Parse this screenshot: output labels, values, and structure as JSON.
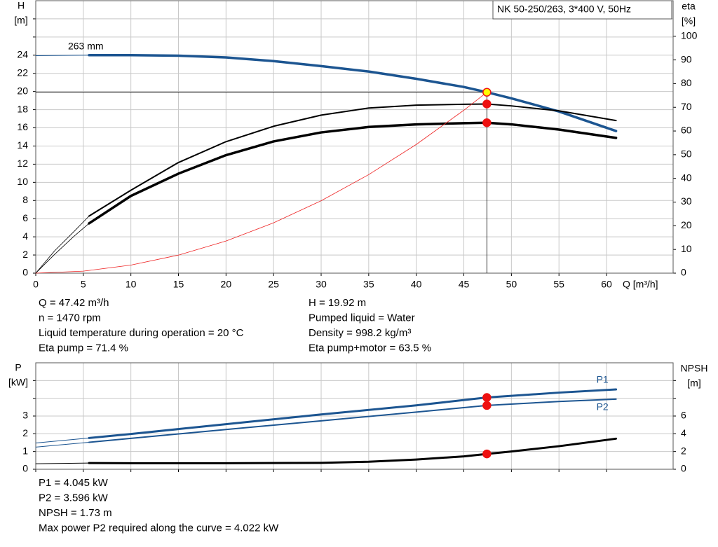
{
  "chart_data": [
    {
      "type": "line",
      "title": "NK 50-250/263, 3*400 V, 50Hz",
      "xlabel": "Q [m³/h]",
      "ylabel": [
        "H",
        "[m]"
      ],
      "y2label": [
        "eta",
        "[%]"
      ],
      "xlim": [
        0,
        67
      ],
      "xticks": [
        0,
        5,
        10,
        15,
        20,
        25,
        30,
        35,
        40,
        45,
        50,
        55,
        60
      ],
      "ylim": [
        0,
        30
      ],
      "yticks": [
        0,
        2,
        4,
        6,
        8,
        10,
        12,
        14,
        16,
        18,
        20,
        22,
        24
      ],
      "ygrid_extra": [
        26,
        28
      ],
      "y2lim": [
        0,
        115
      ],
      "y2ticks": [
        0,
        10,
        20,
        30,
        40,
        50,
        60,
        70,
        80,
        90,
        100
      ],
      "grid": true,
      "series": [
        {
          "x": [
            0,
            5.6
          ],
          "values": [
            23.95,
            24
          ],
          "color": "#1c5591",
          "width": 1,
          "axis": "y"
        },
        {
          "name": "263 mm",
          "x": [
            5.6,
            10,
            15,
            20,
            25,
            30,
            35,
            40,
            45,
            47.42,
            50,
            55,
            61
          ],
          "values": [
            24,
            24,
            23.95,
            23.75,
            23.35,
            22.8,
            22.2,
            21.4,
            20.5,
            19.92,
            19.25,
            17.8,
            15.65
          ],
          "color": "#1c5591",
          "width": 3.5,
          "axis": "y"
        },
        {
          "x": [
            0,
            2,
            4,
            5.6
          ],
          "values": [
            0,
            9.5,
            17.5,
            24.1
          ],
          "color": "#000000",
          "width": 0.8,
          "axis": "y2"
        },
        {
          "x": [
            5.6,
            10,
            15,
            20,
            25,
            30,
            35,
            40,
            45,
            47.42,
            50,
            55,
            61
          ],
          "values": [
            24.1,
            35,
            46.7,
            55.5,
            62,
            66.7,
            69.7,
            70.9,
            71.3,
            71.4,
            70.6,
            68.5,
            64.4
          ],
          "color": "#000000",
          "width": 2,
          "axis": "y2"
        },
        {
          "x": [
            0,
            2,
            4,
            5.6
          ],
          "values": [
            0,
            8,
            15.5,
            21
          ],
          "color": "#000000",
          "width": 0.8,
          "axis": "y2"
        },
        {
          "x": [
            5.6,
            10,
            15,
            20,
            25,
            30,
            35,
            40,
            45,
            47.42,
            50,
            55,
            61
          ],
          "values": [
            21,
            32.6,
            42,
            49.8,
            55.6,
            59.4,
            61.7,
            62.8,
            63.3,
            63.5,
            62.8,
            60.6,
            57.1
          ],
          "color": "#000000",
          "width": 3.5,
          "axis": "y2"
        },
        {
          "x": [
            0,
            5,
            10,
            15,
            20,
            25,
            30,
            35,
            40,
            45,
            47.42
          ],
          "values": [
            0,
            0.221,
            0.886,
            1.99,
            3.54,
            5.54,
            7.97,
            10.85,
            14.17,
            17.94,
            19.92
          ],
          "color": "#ee2222",
          "width": 0.8,
          "axis": "y"
        }
      ],
      "markers": [
        {
          "x": 47.42,
          "y": 19.92,
          "axis": "y",
          "color": "#ffff00",
          "stroke": "#ee1111",
          "crosshair": true
        },
        {
          "x": 47.42,
          "y": 71.4,
          "axis": "y2",
          "color": "#ee1111",
          "stroke": "#ee1111"
        },
        {
          "x": 47.42,
          "y": 63.5,
          "axis": "y2",
          "color": "#ee1111",
          "stroke": "#ee1111"
        }
      ],
      "info_left": [
        "Q = 47.42 m³/h",
        "n = 1470 rpm",
        "Liquid temperature during operation = 20 °C",
        "Eta pump = 71.4 %"
      ],
      "info_right": [
        "H = 19.92 m",
        "Pumped liquid = Water",
        "Density = 998.2 kg/m³",
        "Eta pump+motor = 63.5 %"
      ]
    },
    {
      "type": "line",
      "ylabel": [
        "P",
        "[kW]"
      ],
      "y2label": [
        "NPSH",
        "[m]"
      ],
      "xlim": [
        0,
        67
      ],
      "ylim": [
        0,
        6
      ],
      "yticks": [
        0,
        1,
        2,
        3
      ],
      "ygrid_extra": [
        4,
        5
      ],
      "y2lim": [
        0,
        12
      ],
      "y2ticks": [
        0,
        2,
        4,
        6
      ],
      "y2ticks_extra": [
        8,
        10
      ],
      "grid": true,
      "series": [
        {
          "x": [
            0,
            5.6
          ],
          "values": [
            1.48,
            1.76
          ],
          "color": "#1c5591",
          "width": 1,
          "axis": "y"
        },
        {
          "name": "P1",
          "x": [
            5.6,
            10,
            20,
            30,
            40,
            47.42,
            55,
            61
          ],
          "values": [
            1.76,
            1.99,
            2.54,
            3.09,
            3.6,
            4.045,
            4.32,
            4.5
          ],
          "color": "#1c5591",
          "width": 3,
          "axis": "y"
        },
        {
          "x": [
            0,
            5.6
          ],
          "values": [
            1.25,
            1.52
          ],
          "color": "#1c5591",
          "width": 1,
          "axis": "y"
        },
        {
          "name": "P2",
          "x": [
            5.6,
            10,
            20,
            30,
            40,
            47.42,
            55,
            61
          ],
          "values": [
            1.52,
            1.74,
            2.24,
            2.73,
            3.22,
            3.596,
            3.82,
            3.95
          ],
          "color": "#1c5591",
          "width": 2,
          "axis": "y"
        },
        {
          "x": [
            0,
            5.6
          ],
          "values": [
            0.62,
            0.7
          ],
          "color": "#000000",
          "width": 1,
          "axis": "y2"
        },
        {
          "x": [
            5.6,
            10,
            20,
            30,
            35,
            40,
            45,
            47.42,
            50,
            55,
            61
          ],
          "values": [
            0.7,
            0.68,
            0.68,
            0.72,
            0.85,
            1.1,
            1.45,
            1.73,
            2.0,
            2.6,
            3.45
          ],
          "color": "#000000",
          "width": 3,
          "axis": "y2"
        }
      ],
      "markers": [
        {
          "x": 47.42,
          "y": 4.045,
          "axis": "y",
          "color": "#ee1111",
          "stroke": "#ee1111"
        },
        {
          "x": 47.42,
          "y": 3.596,
          "axis": "y",
          "color": "#ee1111",
          "stroke": "#ee1111"
        },
        {
          "x": 47.42,
          "y": 1.73,
          "axis": "y2",
          "color": "#ee1111",
          "stroke": "#ee1111"
        }
      ],
      "info_left": [
        "P1 = 4.045 kW",
        "P2 = 3.596 kW",
        "NPSH = 1.73 m",
        "Max power P2 required along the curve = 4.022 kW"
      ]
    }
  ]
}
